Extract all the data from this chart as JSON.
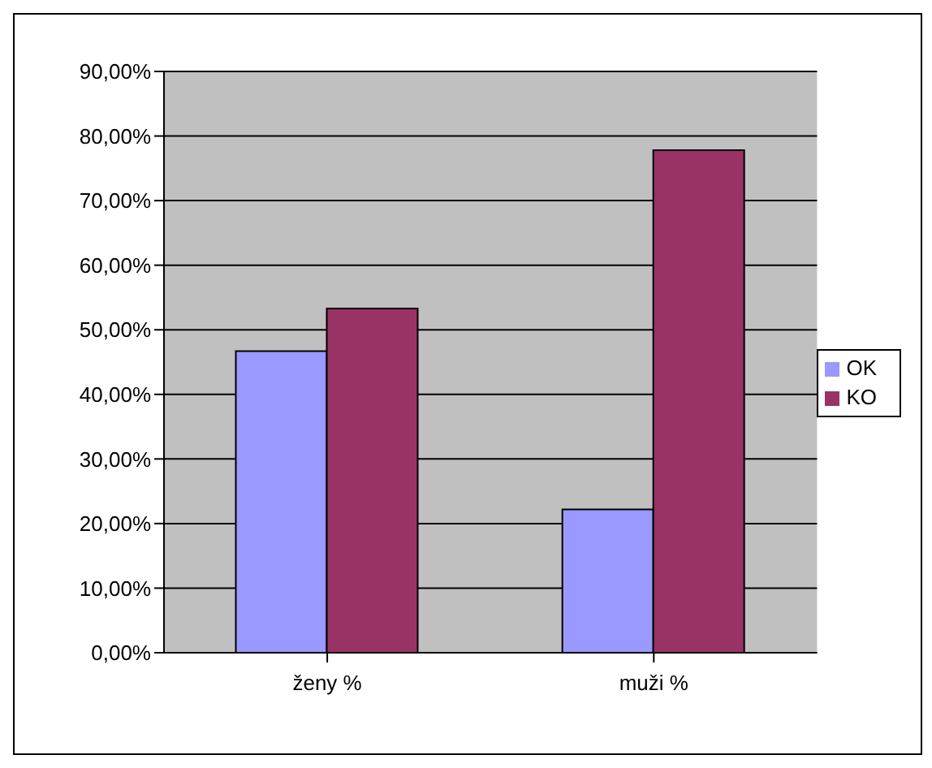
{
  "chart_data": {
    "type": "bar",
    "categories": [
      "ženy %",
      "muži %"
    ],
    "series": [
      {
        "name": "OK",
        "color": "#9999ff",
        "values": [
          46.7,
          22.2
        ]
      },
      {
        "name": "KO",
        "color": "#993366",
        "values": [
          53.3,
          77.8
        ]
      }
    ],
    "ylim": [
      0,
      90
    ],
    "yticks": [
      {
        "value": 0,
        "label": "0,00%"
      },
      {
        "value": 10,
        "label": "10,00%"
      },
      {
        "value": 20,
        "label": "20,00%"
      },
      {
        "value": 30,
        "label": "30,00%"
      },
      {
        "value": 40,
        "label": "40,00%"
      },
      {
        "value": 50,
        "label": "50,00%"
      },
      {
        "value": 60,
        "label": "60,00%"
      },
      {
        "value": 70,
        "label": "70,00%"
      },
      {
        "value": 80,
        "label": "80,00%"
      },
      {
        "value": 90,
        "label": "90,00%"
      }
    ],
    "grid": "y",
    "legend": "right"
  }
}
